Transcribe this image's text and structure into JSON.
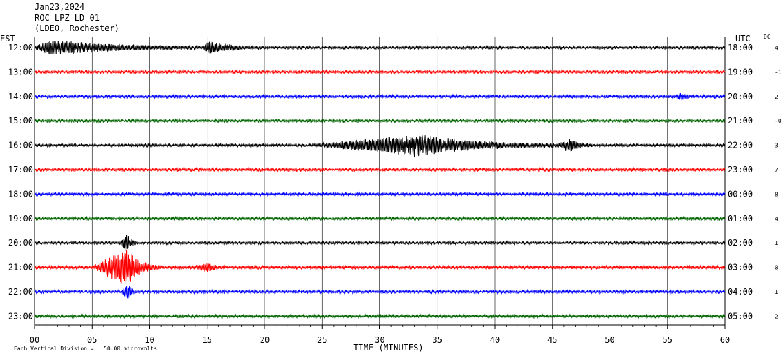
{
  "header": {
    "date": "Jan23,2024",
    "station": "ROC LPZ LD 01",
    "network": "(LDEO, Rochester)"
  },
  "left_axis_title": "EST",
  "right_axis_title": "UTC",
  "dc_title": "DC",
  "footer": {
    "scale_note": "Each Vertical Division =   50.00 microvolts"
  },
  "colors": {
    "trace_cycle": [
      "#000000",
      "#ff0000",
      "#0000ff",
      "#006400"
    ],
    "grid": "#000000",
    "background": "#ffffff"
  },
  "chart_data": {
    "type": "line",
    "xlabel": "TIME (MINUTES)",
    "xlim": [
      0,
      60
    ],
    "x_ticks": [
      "00",
      "05",
      "10",
      "15",
      "20",
      "25",
      "30",
      "35",
      "40",
      "45",
      "50",
      "55",
      "60"
    ],
    "grid": true,
    "rows": [
      {
        "est": "12:00",
        "utc": "18:00",
        "dc": "4",
        "color": "#000000",
        "noise": 2.2,
        "events": [
          {
            "start": 0.0,
            "peak": 1.5,
            "end": 17,
            "amp": 11
          },
          {
            "start": 14.5,
            "peak": 15.2,
            "end": 20,
            "amp": 8
          }
        ]
      },
      {
        "est": "13:00",
        "utc": "19:00",
        "dc": "-1",
        "color": "#ff0000",
        "noise": 2.4,
        "events": []
      },
      {
        "est": "14:00",
        "utc": "20:00",
        "dc": "2",
        "color": "#0000ff",
        "noise": 2.4,
        "events": [
          {
            "start": 55.5,
            "peak": 56.2,
            "end": 57.5,
            "amp": 5
          }
        ]
      },
      {
        "est": "15:00",
        "utc": "21:00",
        "dc": "-0",
        "color": "#006400",
        "noise": 2.4,
        "events": []
      },
      {
        "est": "16:00",
        "utc": "22:00",
        "dc": "3",
        "color": "#000000",
        "noise": 2.2,
        "events": [
          {
            "start": 24,
            "peak": 33.5,
            "end": 47,
            "amp": 16
          },
          {
            "start": 45.5,
            "peak": 46.5,
            "end": 48.5,
            "amp": 9
          }
        ]
      },
      {
        "est": "17:00",
        "utc": "23:00",
        "dc": "7",
        "color": "#ff0000",
        "noise": 2.4,
        "events": []
      },
      {
        "est": "18:00",
        "utc": "00:00",
        "dc": "8",
        "color": "#0000ff",
        "noise": 2.2,
        "events": []
      },
      {
        "est": "19:00",
        "utc": "01:00",
        "dc": "4",
        "color": "#006400",
        "noise": 2.4,
        "events": []
      },
      {
        "est": "20:00",
        "utc": "02:00",
        "dc": "1",
        "color": "#000000",
        "noise": 2.2,
        "events": [
          {
            "start": 7.5,
            "peak": 8.0,
            "end": 9.0,
            "amp": 14
          }
        ]
      },
      {
        "est": "21:00",
        "utc": "03:00",
        "dc": "0",
        "color": "#ff0000",
        "noise": 2.6,
        "events": [
          {
            "start": 5.0,
            "peak": 8.0,
            "end": 11,
            "amp": 28
          },
          {
            "start": 13.8,
            "peak": 15.0,
            "end": 16.5,
            "amp": 6
          }
        ]
      },
      {
        "est": "22:00",
        "utc": "04:00",
        "dc": "1",
        "color": "#0000ff",
        "noise": 2.4,
        "events": [
          {
            "start": 7.6,
            "peak": 8.1,
            "end": 8.6,
            "amp": 12
          }
        ]
      },
      {
        "est": "23:00",
        "utc": "05:00",
        "dc": "2",
        "color": "#006400",
        "noise": 2.4,
        "events": []
      }
    ]
  }
}
